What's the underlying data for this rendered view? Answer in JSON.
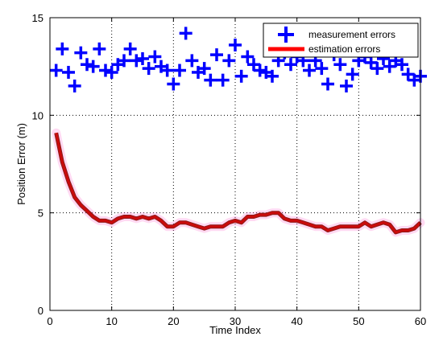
{
  "chart_data": {
    "type": "line",
    "xlabel": "Time Index",
    "ylabel": "Position Error (m)",
    "xlim": [
      0,
      60
    ],
    "ylim": [
      0,
      15
    ],
    "xticks": [
      0,
      10,
      20,
      30,
      40,
      50,
      60
    ],
    "yticks": [
      0,
      5,
      10,
      15
    ],
    "grid": true,
    "legend_position": "top-right",
    "series": [
      {
        "name": "measurement errors",
        "style": "plus-markers",
        "color": "#0000ff",
        "x": [
          1,
          2,
          3,
          4,
          5,
          6,
          7,
          8,
          9,
          10,
          11,
          12,
          13,
          14,
          15,
          16,
          17,
          18,
          19,
          20,
          21,
          22,
          23,
          24,
          25,
          26,
          27,
          28,
          29,
          30,
          31,
          32,
          33,
          34,
          35,
          36,
          37,
          38,
          39,
          40,
          41,
          42,
          43,
          44,
          45,
          46,
          47,
          48,
          49,
          50,
          51,
          52,
          53,
          54,
          55,
          56,
          57,
          58,
          59,
          60
        ],
        "y": [
          12.3,
          13.4,
          12.2,
          11.5,
          13.2,
          12.6,
          12.5,
          13.4,
          12.3,
          12.2,
          12.6,
          12.8,
          13.4,
          12.8,
          12.9,
          12.4,
          13.0,
          12.5,
          12.3,
          11.6,
          12.3,
          14.2,
          12.8,
          12.2,
          12.4,
          11.8,
          13.1,
          11.8,
          12.8,
          13.6,
          12.0,
          13.0,
          12.6,
          12.3,
          12.2,
          12.0,
          12.8,
          13.2,
          12.6,
          13.0,
          12.8,
          12.3,
          12.8,
          12.4,
          11.6,
          13.1,
          12.6,
          11.5,
          12.1,
          12.8,
          13.0,
          12.7,
          12.4,
          12.9,
          12.5,
          12.8,
          12.6,
          12.1,
          11.8,
          12.0
        ]
      },
      {
        "name": "estimation errors",
        "style": "line",
        "color": "#ff0000",
        "x": [
          1,
          2,
          3,
          4,
          5,
          6,
          7,
          8,
          9,
          10,
          11,
          12,
          13,
          14,
          15,
          16,
          17,
          18,
          19,
          20,
          21,
          22,
          23,
          24,
          25,
          26,
          27,
          28,
          29,
          30,
          31,
          32,
          33,
          34,
          35,
          36,
          37,
          38,
          39,
          40,
          41,
          42,
          43,
          44,
          45,
          46,
          47,
          48,
          49,
          50,
          51,
          52,
          53,
          54,
          55,
          56,
          57,
          58,
          59,
          60
        ],
        "y": [
          9.1,
          7.6,
          6.6,
          5.8,
          5.4,
          5.1,
          4.8,
          4.6,
          4.6,
          4.5,
          4.7,
          4.8,
          4.8,
          4.7,
          4.8,
          4.7,
          4.8,
          4.6,
          4.3,
          4.3,
          4.5,
          4.5,
          4.4,
          4.3,
          4.2,
          4.3,
          4.3,
          4.3,
          4.5,
          4.6,
          4.5,
          4.8,
          4.8,
          4.9,
          4.9,
          5.0,
          5.0,
          4.7,
          4.6,
          4.6,
          4.5,
          4.4,
          4.3,
          4.3,
          4.1,
          4.2,
          4.3,
          4.3,
          4.3,
          4.3,
          4.5,
          4.3,
          4.4,
          4.5,
          4.4,
          4.0,
          4.1,
          4.1,
          4.2,
          4.5
        ]
      }
    ]
  }
}
